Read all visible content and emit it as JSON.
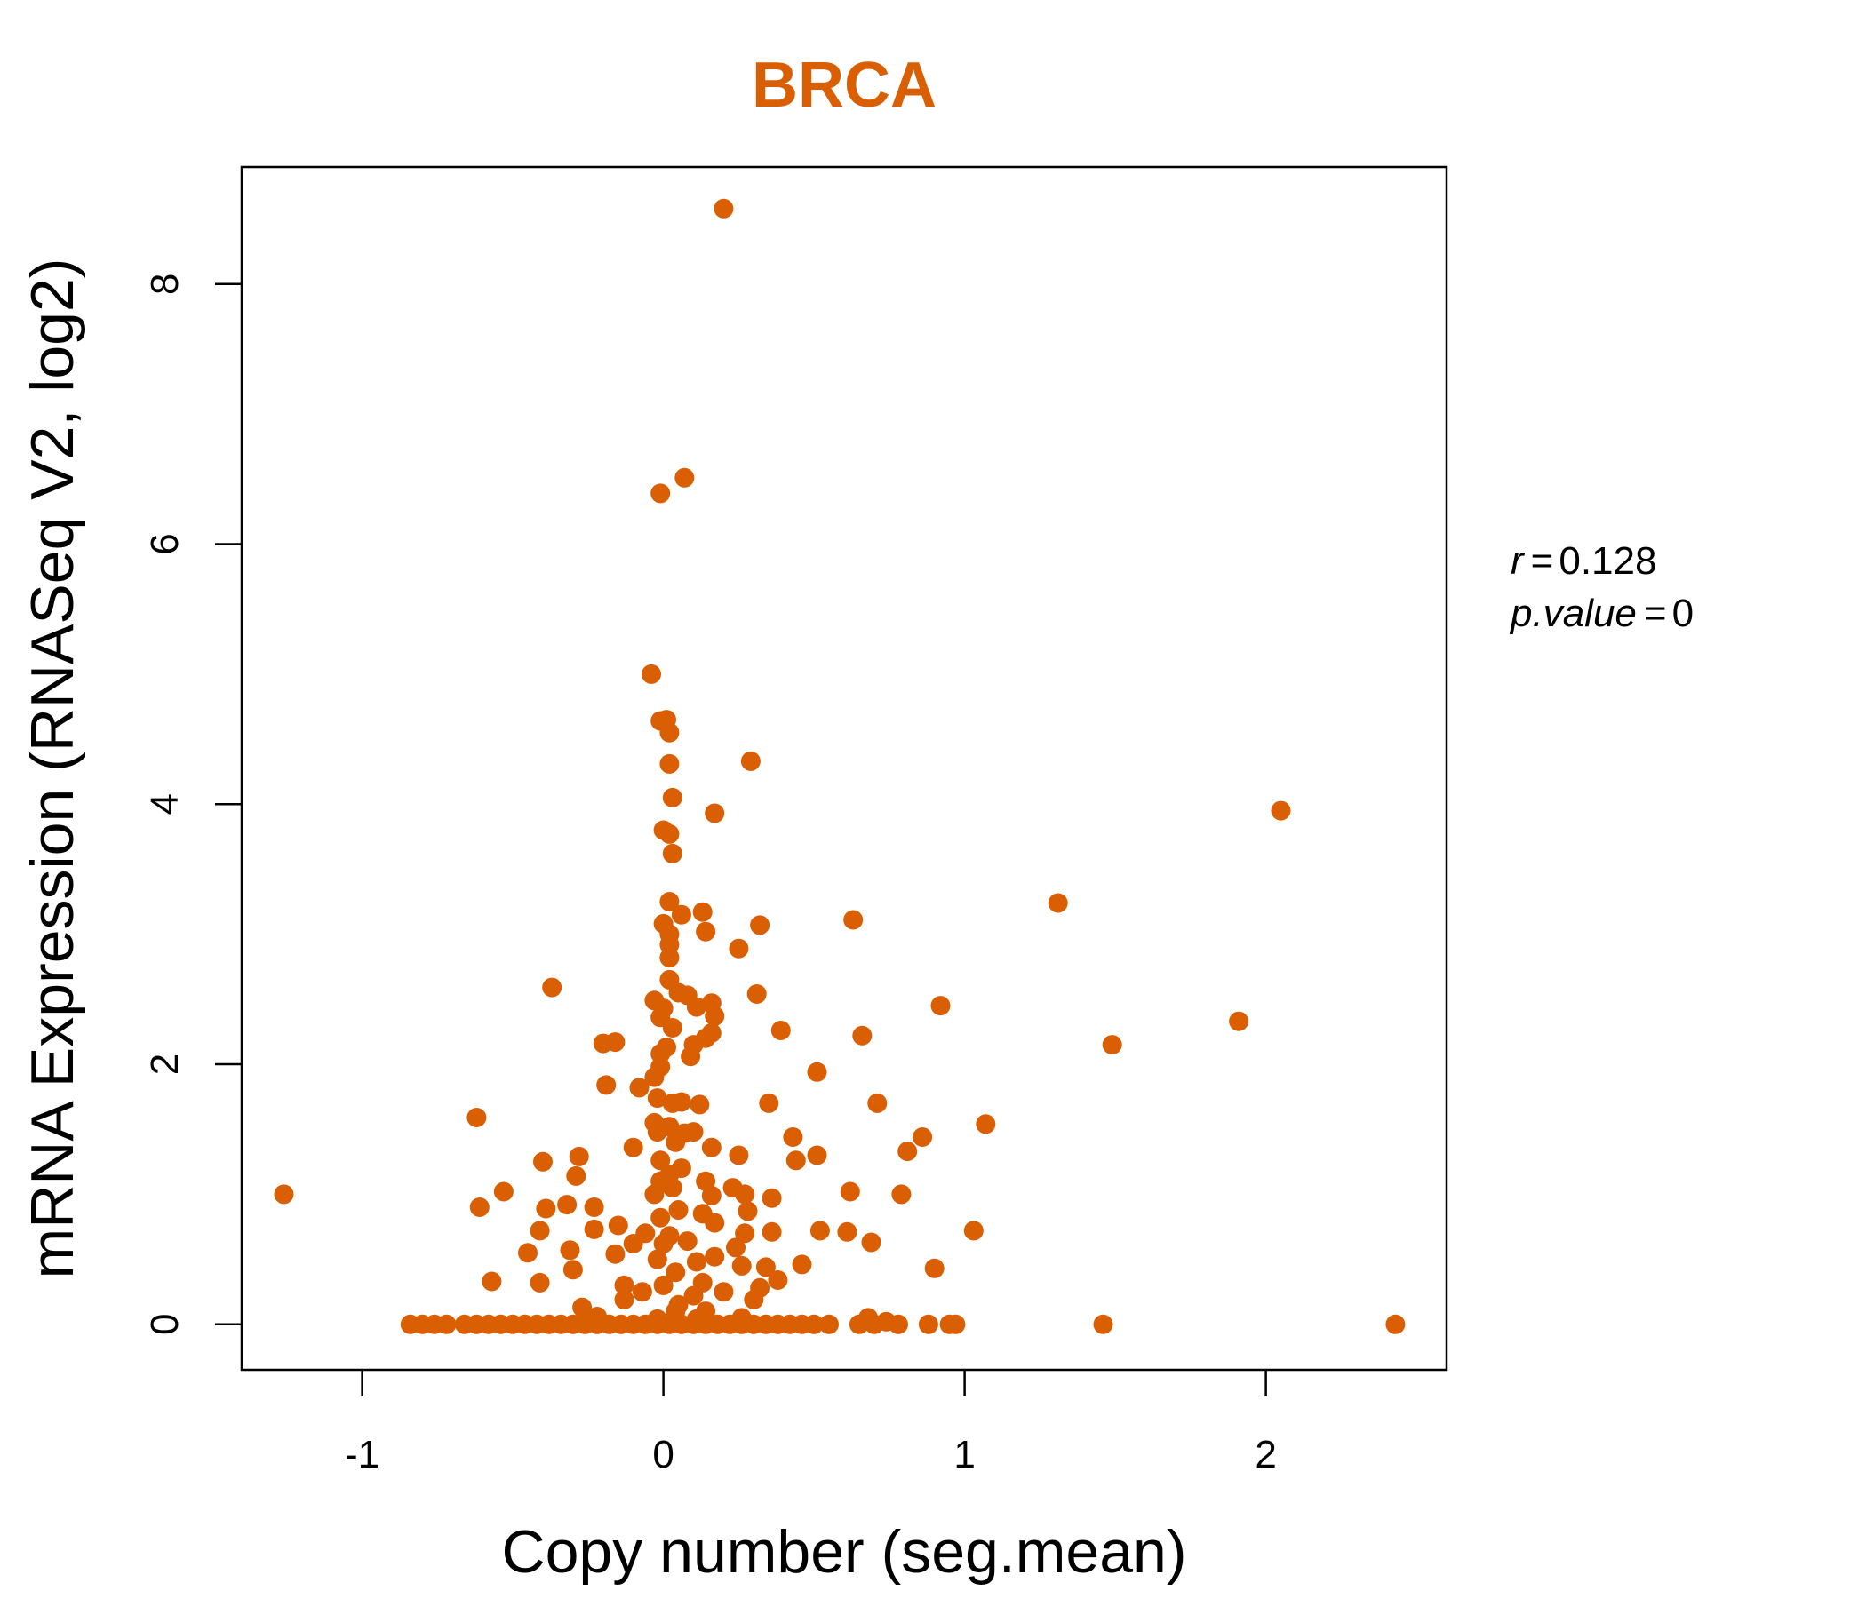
{
  "chart_data": {
    "type": "scatter",
    "title": "BRCA",
    "xlabel": "Copy number (seg.mean)",
    "ylabel": "mRNA Expression (RNASeq V2, log2)",
    "xlim": [
      -1.4,
      2.6
    ],
    "ylim": [
      -0.35,
      8.9
    ],
    "xticks": [
      {
        "value": -1,
        "label": "-1"
      },
      {
        "value": 0,
        "label": "0"
      },
      {
        "value": 1,
        "label": "1"
      },
      {
        "value": 2,
        "label": "2"
      }
    ],
    "yticks": [
      {
        "value": 0,
        "label": "0"
      },
      {
        "value": 2,
        "label": "2"
      },
      {
        "value": 4,
        "label": "4"
      },
      {
        "value": 6,
        "label": "6"
      },
      {
        "value": 8,
        "label": "8"
      }
    ],
    "point_color": "#D95F02",
    "stats": {
      "r_label": "r",
      "r_value": "0.128",
      "p_label": "p.value",
      "p_value": "0"
    },
    "grid": false,
    "points": [
      [
        0.2,
        8.58
      ],
      [
        0.07,
        6.51
      ],
      [
        -0.01,
        6.39
      ],
      [
        -0.04,
        5.0
      ],
      [
        -0.01,
        4.64
      ],
      [
        0.01,
        4.65
      ],
      [
        0.02,
        4.55
      ],
      [
        0.29,
        4.33
      ],
      [
        0.02,
        4.31
      ],
      [
        0.03,
        4.05
      ],
      [
        0.17,
        3.93
      ],
      [
        2.05,
        3.95
      ],
      [
        0.0,
        3.8
      ],
      [
        0.02,
        3.77
      ],
      [
        0.03,
        3.62
      ],
      [
        1.31,
        3.24
      ],
      [
        0.02,
        3.25
      ],
      [
        0.13,
        3.17
      ],
      [
        0.06,
        3.15
      ],
      [
        0.63,
        3.11
      ],
      [
        0.0,
        3.08
      ],
      [
        0.32,
        3.07
      ],
      [
        0.14,
        3.02
      ],
      [
        0.02,
        3.0
      ],
      [
        0.02,
        2.92
      ],
      [
        0.25,
        2.89
      ],
      [
        0.02,
        2.82
      ],
      [
        0.02,
        2.65
      ],
      [
        -0.37,
        2.59
      ],
      [
        0.31,
        2.54
      ],
      [
        0.08,
        2.53
      ],
      [
        0.05,
        2.55
      ],
      [
        -0.03,
        2.49
      ],
      [
        0.11,
        2.44
      ],
      [
        0.92,
        2.45
      ],
      [
        0.16,
        2.47
      ],
      [
        0.0,
        2.43
      ],
      [
        0.17,
        2.37
      ],
      [
        -0.01,
        2.36
      ],
      [
        1.91,
        2.33
      ],
      [
        0.03,
        2.28
      ],
      [
        0.16,
        2.24
      ],
      [
        0.39,
        2.26
      ],
      [
        0.66,
        2.22
      ],
      [
        0.14,
        2.2
      ],
      [
        -0.2,
        2.16
      ],
      [
        -0.16,
        2.17
      ],
      [
        1.49,
        2.15
      ],
      [
        0.01,
        2.13
      ],
      [
        0.1,
        2.15
      ],
      [
        -0.01,
        2.08
      ],
      [
        0.09,
        2.06
      ],
      [
        -0.01,
        1.98
      ],
      [
        0.51,
        1.94
      ],
      [
        -0.03,
        1.9
      ],
      [
        -0.19,
        1.84
      ],
      [
        -0.08,
        1.82
      ],
      [
        -0.02,
        1.74
      ],
      [
        0.03,
        1.7
      ],
      [
        0.06,
        1.71
      ],
      [
        0.35,
        1.7
      ],
      [
        0.12,
        1.69
      ],
      [
        0.71,
        1.7
      ],
      [
        -0.62,
        1.59
      ],
      [
        1.07,
        1.54
      ],
      [
        -0.03,
        1.55
      ],
      [
        0.02,
        1.52
      ],
      [
        -0.02,
        1.48
      ],
      [
        0.07,
        1.47
      ],
      [
        0.1,
        1.48
      ],
      [
        0.43,
        1.44
      ],
      [
        0.86,
        1.44
      ],
      [
        0.04,
        1.4
      ],
      [
        -0.1,
        1.36
      ],
      [
        0.16,
        1.36
      ],
      [
        0.81,
        1.33
      ],
      [
        0.51,
        1.3
      ],
      [
        -0.28,
        1.29
      ],
      [
        0.25,
        1.3
      ],
      [
        0.44,
        1.26
      ],
      [
        -0.4,
        1.25
      ],
      [
        -0.01,
        1.26
      ],
      [
        0.06,
        1.2
      ],
      [
        0.02,
        1.15
      ],
      [
        -0.29,
        1.14
      ],
      [
        -0.01,
        1.1
      ],
      [
        0.14,
        1.1
      ],
      [
        0.03,
        1.05
      ],
      [
        0.23,
        1.05
      ],
      [
        0.62,
        1.02
      ],
      [
        -1.26,
        1.0
      ],
      [
        -0.53,
        1.02
      ],
      [
        0.79,
        1.0
      ],
      [
        0.36,
        0.97
      ],
      [
        -0.03,
        1.0
      ],
      [
        0.27,
        1.0
      ],
      [
        0.16,
        0.99
      ],
      [
        -0.32,
        0.92
      ],
      [
        -0.39,
        0.89
      ],
      [
        -0.61,
        0.9
      ],
      [
        -0.23,
        0.9
      ],
      [
        0.05,
        0.88
      ],
      [
        0.28,
        0.87
      ],
      [
        0.13,
        0.85
      ],
      [
        -0.01,
        0.82
      ],
      [
        0.17,
        0.78
      ],
      [
        -0.15,
        0.76
      ],
      [
        -0.23,
        0.73
      ],
      [
        0.52,
        0.72
      ],
      [
        0.61,
        0.71
      ],
      [
        1.03,
        0.72
      ],
      [
        0.27,
        0.7
      ],
      [
        -0.41,
        0.72
      ],
      [
        0.36,
        0.71
      ],
      [
        -0.06,
        0.7
      ],
      [
        0.02,
        0.68
      ],
      [
        0.69,
        0.63
      ],
      [
        0.08,
        0.64
      ],
      [
        0.0,
        0.62
      ],
      [
        -0.1,
        0.62
      ],
      [
        0.24,
        0.59
      ],
      [
        -0.31,
        0.57
      ],
      [
        -0.45,
        0.55
      ],
      [
        -0.16,
        0.54
      ],
      [
        0.17,
        0.52
      ],
      [
        -0.02,
        0.5
      ],
      [
        0.11,
        0.48
      ],
      [
        0.46,
        0.46
      ],
      [
        0.26,
        0.45
      ],
      [
        0.34,
        0.44
      ],
      [
        0.9,
        0.43
      ],
      [
        -0.3,
        0.42
      ],
      [
        0.04,
        0.4
      ],
      [
        0.38,
        0.34
      ],
      [
        -0.57,
        0.33
      ],
      [
        -0.41,
        0.32
      ],
      [
        0.13,
        0.32
      ],
      [
        0.0,
        0.3
      ],
      [
        -0.13,
        0.3
      ],
      [
        0.32,
        0.28
      ],
      [
        0.2,
        0.25
      ],
      [
        -0.07,
        0.25
      ],
      [
        0.1,
        0.22
      ],
      [
        0.3,
        0.19
      ],
      [
        -0.13,
        0.19
      ],
      [
        0.05,
        0.15
      ],
      [
        -0.27,
        0.13
      ],
      [
        0.14,
        0.1
      ],
      [
        0.04,
        0.1
      ],
      [
        -0.22,
        0.06
      ],
      [
        0.68,
        0.05
      ],
      [
        0.26,
        0.05
      ],
      [
        0.11,
        0.04
      ],
      [
        -0.02,
        0.04
      ],
      [
        0.74,
        0.02
      ],
      [
        -0.84,
        0.0
      ],
      [
        -0.8,
        0.0
      ],
      [
        -0.76,
        0.0
      ],
      [
        -0.72,
        0.0
      ],
      [
        -0.66,
        0.0
      ],
      [
        -0.62,
        0.0
      ],
      [
        -0.58,
        0.0
      ],
      [
        -0.54,
        0.0
      ],
      [
        -0.5,
        0.0
      ],
      [
        -0.46,
        0.0
      ],
      [
        -0.42,
        0.0
      ],
      [
        -0.38,
        0.0
      ],
      [
        -0.34,
        0.0
      ],
      [
        -0.3,
        0.0
      ],
      [
        -0.26,
        0.0
      ],
      [
        -0.22,
        0.0
      ],
      [
        -0.18,
        0.0
      ],
      [
        -0.14,
        0.0
      ],
      [
        -0.1,
        0.0
      ],
      [
        -0.06,
        0.0
      ],
      [
        -0.02,
        0.0
      ],
      [
        0.02,
        0.0
      ],
      [
        0.06,
        0.0
      ],
      [
        0.1,
        0.0
      ],
      [
        0.14,
        0.0
      ],
      [
        0.18,
        0.0
      ],
      [
        0.22,
        0.0
      ],
      [
        0.26,
        0.0
      ],
      [
        0.3,
        0.0
      ],
      [
        0.34,
        0.0
      ],
      [
        0.38,
        0.0
      ],
      [
        0.42,
        0.0
      ],
      [
        0.46,
        0.0
      ],
      [
        0.5,
        0.0
      ],
      [
        0.55,
        0.0
      ],
      [
        0.65,
        0.0
      ],
      [
        0.7,
        0.0
      ],
      [
        0.78,
        0.0
      ],
      [
        0.88,
        0.0
      ],
      [
        0.95,
        0.0
      ],
      [
        0.97,
        0.0
      ],
      [
        1.46,
        0.0
      ],
      [
        2.43,
        0.0
      ]
    ]
  }
}
